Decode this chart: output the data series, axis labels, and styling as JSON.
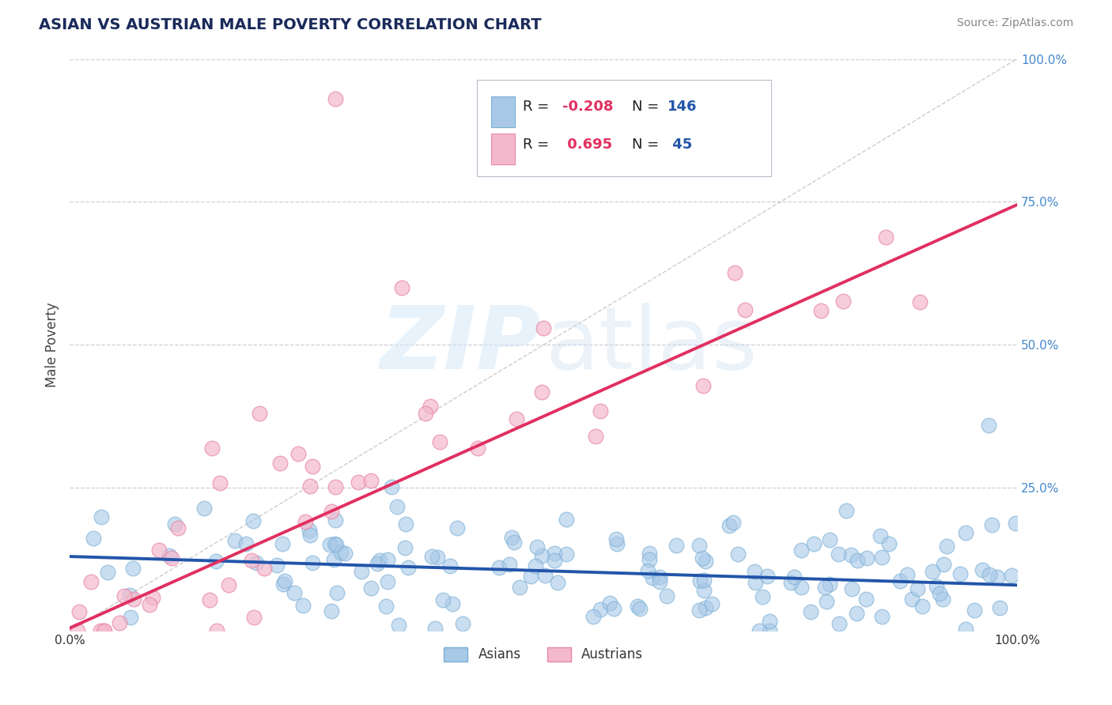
{
  "title": "ASIAN VS AUSTRIAN MALE POVERTY CORRELATION CHART",
  "source_text": "Source: ZipAtlas.com",
  "ylabel": "Male Poverty",
  "xlim": [
    0.0,
    1.0
  ],
  "ylim": [
    0.0,
    1.0
  ],
  "ytick_positions": [
    0.25,
    0.5,
    0.75,
    1.0
  ],
  "asian_color": "#a8c8e8",
  "asian_edge": "#7aafd4",
  "austrian_color": "#f4b8cc",
  "austrian_edge": "#e888a8",
  "asian_line_color": "#2255aa",
  "austrian_line_color": "#e03060",
  "diag_line_color": "#c0c0c0",
  "grid_color": "#c8c8d8",
  "title_color": "#1a2a5a",
  "source_color": "#888888",
  "axis_label_color": "#444444",
  "legend_R_color": "#e03060",
  "legend_N_color": "#2255aa",
  "legend_text_color": "#222222",
  "background_color": "#ffffff",
  "asian_N": 146,
  "austrian_N": 45,
  "asian_intercept": 0.13,
  "asian_slope": -0.05,
  "austrian_intercept": 0.005,
  "austrian_slope": 0.74,
  "watermark_zip_color": "#c8ddf0",
  "watermark_atlas_color": "#c8ddf0",
  "right_tick_color": "#4488cc"
}
